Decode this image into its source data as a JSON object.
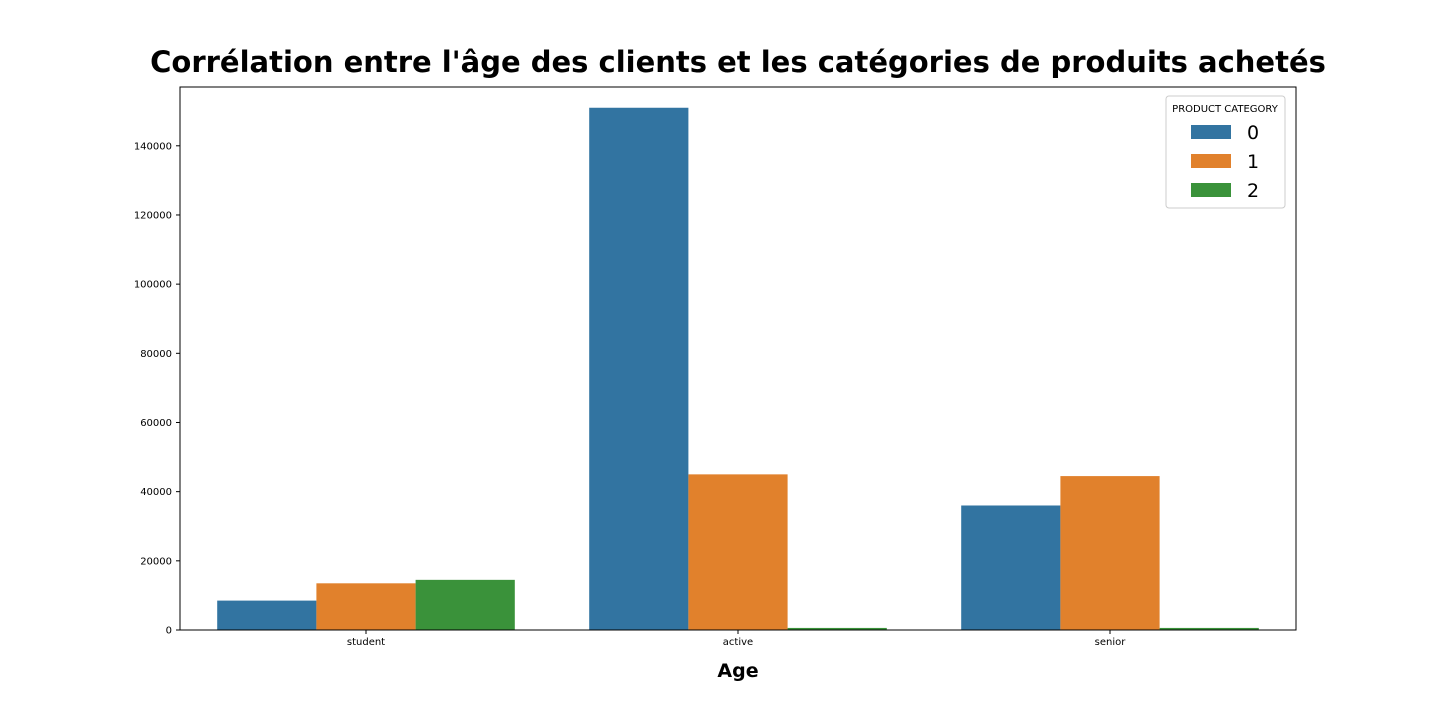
{
  "chart_data": {
    "type": "bar",
    "title": "Corrélation entre l'âge des clients et les catégories de produits achetés",
    "xlabel": "Age",
    "ylabel": "",
    "categories": [
      "student",
      "active",
      "senior"
    ],
    "series": [
      {
        "name": "0",
        "color": "#3274a1",
        "values": [
          8500,
          151000,
          36000
        ]
      },
      {
        "name": "1",
        "color": "#e1812c",
        "values": [
          13500,
          45000,
          44500
        ]
      },
      {
        "name": "2",
        "color": "#3a923a",
        "values": [
          14500,
          600,
          600
        ]
      }
    ],
    "ylim": [
      0,
      157000
    ],
    "yticks": [
      0,
      20000,
      40000,
      60000,
      80000,
      100000,
      120000,
      140000
    ],
    "legend": {
      "title": "PRODUCT CATEGORY",
      "placement": "top-right"
    },
    "grid": false
  }
}
